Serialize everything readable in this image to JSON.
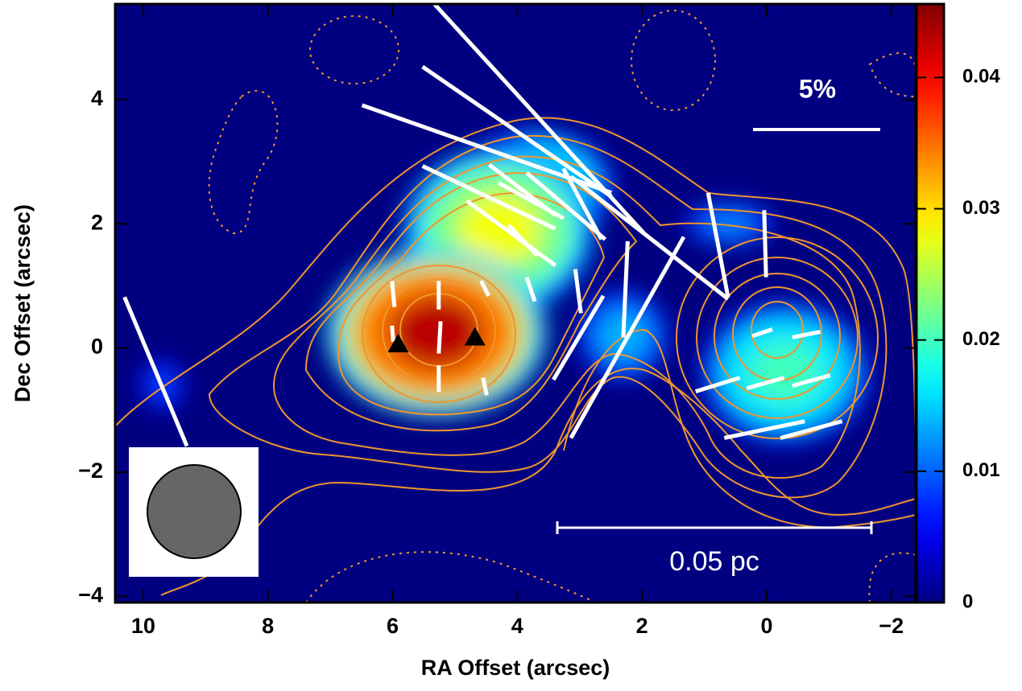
{
  "chart_data": {
    "type": "polarization-map",
    "x_label": "RA Offset (arcsec)",
    "y_label": "Dec Offset (arcsec)",
    "xlim": [
      10.45,
      -2.39
    ],
    "ylim": [
      -4.1,
      5.54
    ],
    "xticks": [
      10,
      8,
      6,
      4,
      2,
      0,
      {
        "value": -2,
        "label": "−2"
      }
    ],
    "yticks": [
      {
        "value": -4,
        "label": "−4"
      },
      {
        "value": -2,
        "label": "−2"
      },
      0,
      2,
      4
    ],
    "clim": [
      0,
      0.0456
    ],
    "cticks": [
      0,
      0.01,
      0.02,
      0.03,
      0.04
    ],
    "colormap": "jet",
    "vector_color": "#ffffff",
    "emission": [
      {
        "x": 9.7,
        "y": -0.6,
        "rx": 0.35,
        "ry": 0.4,
        "peak": 0.009
      },
      {
        "x": 2.3,
        "y": 0.2,
        "rx": 0.7,
        "ry": 0.7,
        "peak": 0.014
      },
      {
        "x": 0.6,
        "y": 2.0,
        "rx": 0.7,
        "ry": 0.35,
        "peak": 0.012
      },
      {
        "x": -0.3,
        "y": -0.4,
        "rx": 1.3,
        "ry": 1.1,
        "peak": 0.02
      },
      {
        "x": 3.7,
        "y": 2.6,
        "rx": 1.2,
        "ry": 0.9,
        "peak": 0.02
      },
      {
        "x": 4.3,
        "y": 1.9,
        "rx": 1.5,
        "ry": 1.3,
        "peak": 0.028
      },
      {
        "x": 5.3,
        "y": 0.25,
        "rx": 1.7,
        "ry": 1.3,
        "peak": 0.043
      }
    ],
    "sources": [
      {
        "x": 5.91,
        "y": 0.06
      },
      {
        "x": 4.68,
        "y": 0.17
      }
    ],
    "vectors": [
      {
        "x1": 10.3,
        "y1": 0.82,
        "x2": 9.3,
        "y2": -1.58
      },
      {
        "x1": 5.33,
        "y1": 5.54,
        "x2": 1.97,
        "y2": 1.85
      },
      {
        "x1": 5.52,
        "y1": 4.53,
        "x2": 2.49,
        "y2": 2.44
      },
      {
        "x1": 6.49,
        "y1": 3.91,
        "x2": 2.49,
        "y2": 2.5
      },
      {
        "x1": 5.52,
        "y1": 2.93,
        "x2": 3.39,
        "y2": 1.92
      },
      {
        "x1": 4.45,
        "y1": 2.95,
        "x2": 3.39,
        "y2": 2.14
      },
      {
        "x1": 4.3,
        "y1": 2.66,
        "x2": 3.26,
        "y2": 2.09
      },
      {
        "x1": 3.85,
        "y1": 2.82,
        "x2": 2.59,
        "y2": 1.75
      },
      {
        "x1": 3.26,
        "y1": 2.89,
        "x2": 2.65,
        "y2": 1.75
      },
      {
        "x1": 4.81,
        "y1": 2.37,
        "x2": 3.39,
        "y2": 1.33
      },
      {
        "x1": 4.14,
        "y1": 1.98,
        "x2": 3.68,
        "y2": 1.49
      },
      {
        "x1": 3.14,
        "y1": 2.76,
        "x2": 0.62,
        "y2": 0.79
      },
      {
        "x1": 0.94,
        "y1": 2.5,
        "x2": 0.62,
        "y2": 0.82
      },
      {
        "x1": 0.04,
        "y1": 2.22,
        "x2": 0.01,
        "y2": 1.14
      },
      {
        "x1": 1.33,
        "y1": 1.79,
        "x2": 3.14,
        "y2": -1.45
      },
      {
        "x1": 2.23,
        "y1": 1.72,
        "x2": 2.3,
        "y2": 0.17
      },
      {
        "x1": 2.62,
        "y1": 0.84,
        "x2": 3.42,
        "y2": -0.51
      },
      {
        "x1": 3.07,
        "y1": 1.27,
        "x2": 2.98,
        "y2": 0.56
      },
      {
        "x1": 3.85,
        "y1": 1.14,
        "x2": 3.72,
        "y2": 0.75
      },
      {
        "x1": 6.01,
        "y1": 1.08,
        "x2": 5.97,
        "y2": 0.66
      },
      {
        "x1": 5.26,
        "y1": 1.08,
        "x2": 5.26,
        "y2": 0.62
      },
      {
        "x1": 5.23,
        "y1": 0.43,
        "x2": 5.26,
        "y2": -0.09
      },
      {
        "x1": 5.26,
        "y1": -0.28,
        "x2": 5.26,
        "y2": -0.71
      },
      {
        "x1": 4.58,
        "y1": 1.08,
        "x2": 4.46,
        "y2": 0.84
      },
      {
        "x1": 4.55,
        "y1": -0.48,
        "x2": 4.49,
        "y2": -0.76
      },
      {
        "x1": 6.01,
        "y1": 0.36,
        "x2": 5.99,
        "y2": 0.1
      },
      {
        "x1": 1.14,
        "y1": -0.7,
        "x2": 0.43,
        "y2": -0.48
      },
      {
        "x1": 0.32,
        "y1": -0.65,
        "x2": -0.28,
        "y2": -0.48
      },
      {
        "x1": -0.41,
        "y1": -0.61,
        "x2": -1.02,
        "y2": -0.44
      },
      {
        "x1": 0.23,
        "y1": 0.19,
        "x2": -0.09,
        "y2": 0.3
      },
      {
        "x1": -0.41,
        "y1": 0.17,
        "x2": -0.86,
        "y2": 0.26
      },
      {
        "x1": 0.68,
        "y1": -1.45,
        "x2": -0.61,
        "y2": -1.18
      },
      {
        "x1": -0.22,
        "y1": -1.45,
        "x2": -1.21,
        "y2": -1.18
      }
    ],
    "polarization_scale": {
      "label": "5%"
    },
    "scale_bar": {
      "label": "0.05 pc"
    }
  }
}
